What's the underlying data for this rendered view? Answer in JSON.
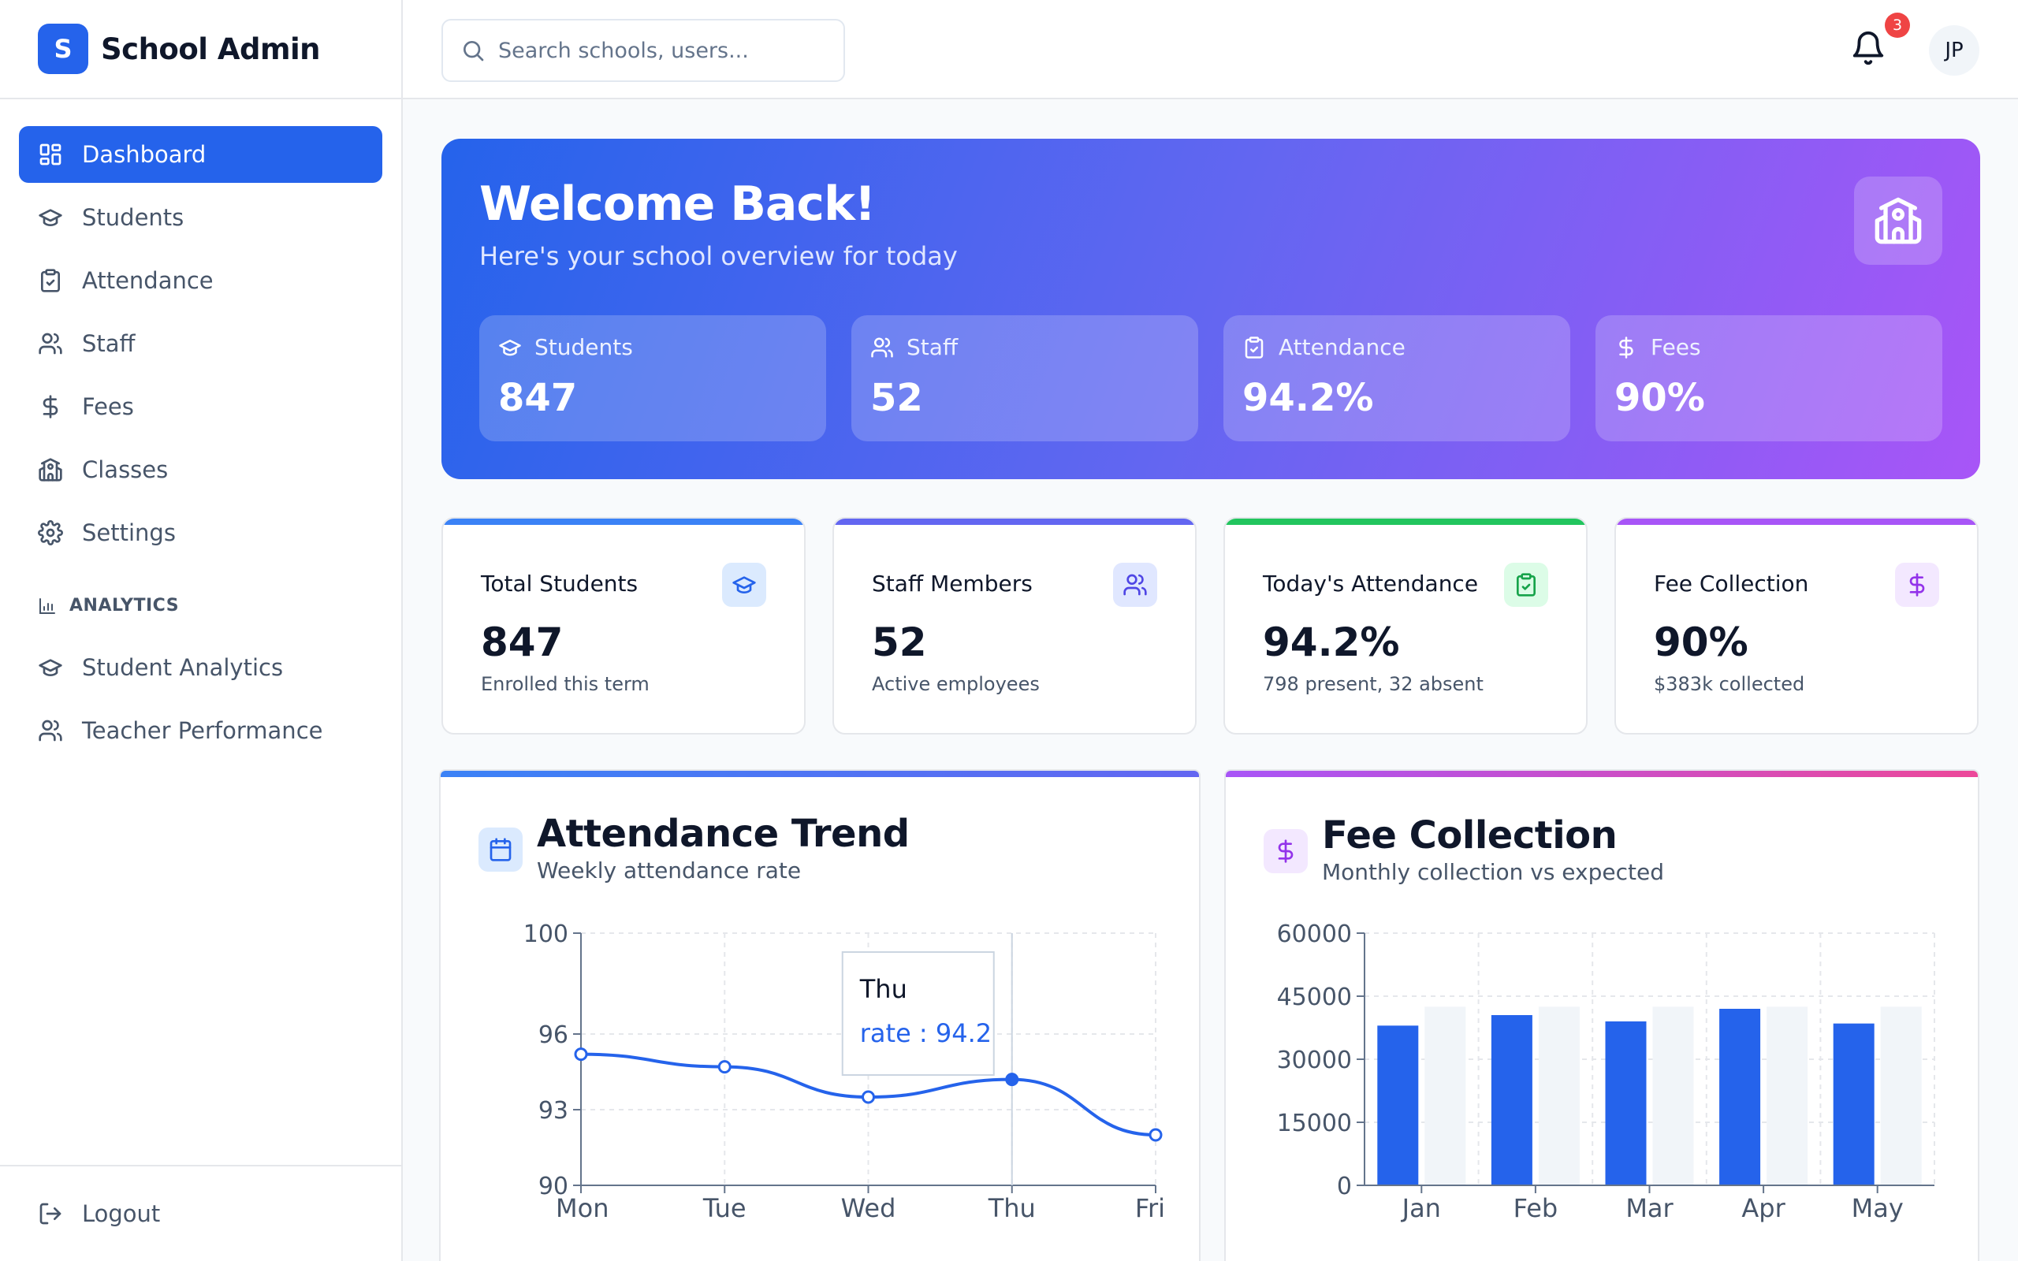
{
  "brand": {
    "logo_letter": "S",
    "name": "School Admin"
  },
  "sidebar": {
    "items": [
      {
        "label": "Dashboard",
        "icon": "dashboard-icon",
        "active": true
      },
      {
        "label": "Students",
        "icon": "graduation-cap-icon"
      },
      {
        "label": "Attendance",
        "icon": "clipboard-check-icon"
      },
      {
        "label": "Staff",
        "icon": "users-icon"
      },
      {
        "label": "Fees",
        "icon": "dollar-icon"
      },
      {
        "label": "Classes",
        "icon": "school-icon"
      },
      {
        "label": "Settings",
        "icon": "gear-icon"
      }
    ],
    "analytics_heading": "ANALYTICS",
    "analytics_items": [
      {
        "label": "Student Analytics",
        "icon": "graduation-cap-icon"
      },
      {
        "label": "Teacher Performance",
        "icon": "users-icon"
      }
    ],
    "logout_label": "Logout"
  },
  "header": {
    "search_placeholder": "Search schools, users...",
    "notification_count": "3",
    "avatar_initials": "JP"
  },
  "hero": {
    "title": "Welcome Back!",
    "subtitle": "Here's your school overview for today",
    "stats": [
      {
        "label": "Students",
        "value": "847",
        "icon": "graduation-cap-icon"
      },
      {
        "label": "Staff",
        "value": "52",
        "icon": "users-icon"
      },
      {
        "label": "Attendance",
        "value": "94.2%",
        "icon": "clipboard-check-icon"
      },
      {
        "label": "Fees",
        "value": "90%",
        "icon": "dollar-icon"
      }
    ]
  },
  "cards": [
    {
      "title": "Total Students",
      "value": "847",
      "subtitle": "Enrolled this term",
      "icon": "graduation-cap-icon",
      "accent": "#3b82f6"
    },
    {
      "title": "Staff Members",
      "value": "52",
      "subtitle": "Active employees",
      "icon": "users-icon",
      "accent": "#6366f1"
    },
    {
      "title": "Today's Attendance",
      "value": "94.2%",
      "subtitle": "798 present, 32 absent",
      "icon": "clipboard-check-icon",
      "accent": "#22c55e"
    },
    {
      "title": "Fee Collection",
      "value": "90%",
      "subtitle": "$383k collected",
      "icon": "dollar-icon",
      "accent": "#a855f7"
    }
  ],
  "attendance_panel": {
    "title": "Attendance Trend",
    "subtitle": "Weekly attendance rate",
    "icon": "calendar-icon"
  },
  "fee_panel": {
    "title": "Fee Collection",
    "subtitle": "Monthly collection vs expected",
    "icon": "dollar-icon"
  },
  "chart_data": [
    {
      "type": "line",
      "title": "Attendance Trend",
      "categories": [
        "Mon",
        "Tue",
        "Wed",
        "Thu",
        "Fri"
      ],
      "series": [
        {
          "name": "rate",
          "values": [
            95.2,
            94.7,
            93.5,
            94.2,
            92.0
          ],
          "color": "#2563eb"
        }
      ],
      "yticks": [
        90,
        93,
        96,
        100
      ],
      "ylim": [
        90,
        100
      ],
      "grid": true,
      "tooltip": {
        "category": "Thu",
        "label": "rate : 94.2"
      }
    },
    {
      "type": "bar",
      "title": "Fee Collection",
      "categories": [
        "Jan",
        "Feb",
        "Mar",
        "Apr",
        "May"
      ],
      "series": [
        {
          "values": [
            38000,
            40500,
            39000,
            42000,
            38500
          ],
          "color": "#2563eb"
        },
        {
          "values": [
            42500,
            42500,
            42500,
            42500,
            42500
          ],
          "color": "#f1f5f9"
        }
      ],
      "yticks": [
        0,
        15000,
        30000,
        45000,
        60000
      ],
      "ylim": [
        0,
        60000
      ],
      "grid": true
    }
  ]
}
